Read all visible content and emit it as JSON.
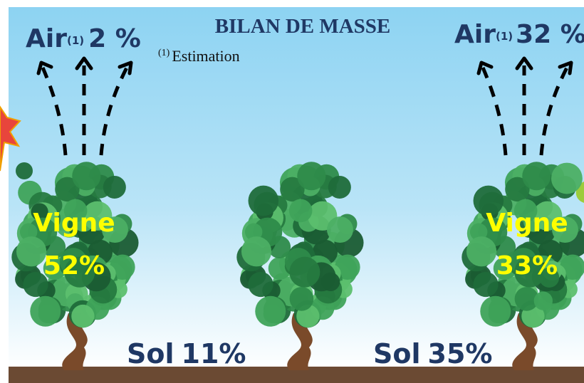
{
  "title": "BILAN DE MASSE",
  "footnote": {
    "marker": "(1)",
    "text": "Estimation"
  },
  "left": {
    "air": {
      "label": "Air",
      "marker": "(1)",
      "value": "2 %"
    },
    "vine": {
      "label": "Vigne",
      "value": "52%"
    },
    "soil": {
      "label": "Sol",
      "value": "11%"
    }
  },
  "right": {
    "air": {
      "label": "Air",
      "marker": "(1)",
      "value": "32 %"
    },
    "vine": {
      "label": "Vigne",
      "value": "33%"
    },
    "soil": {
      "label": "Sol",
      "value": "35%"
    }
  }
}
